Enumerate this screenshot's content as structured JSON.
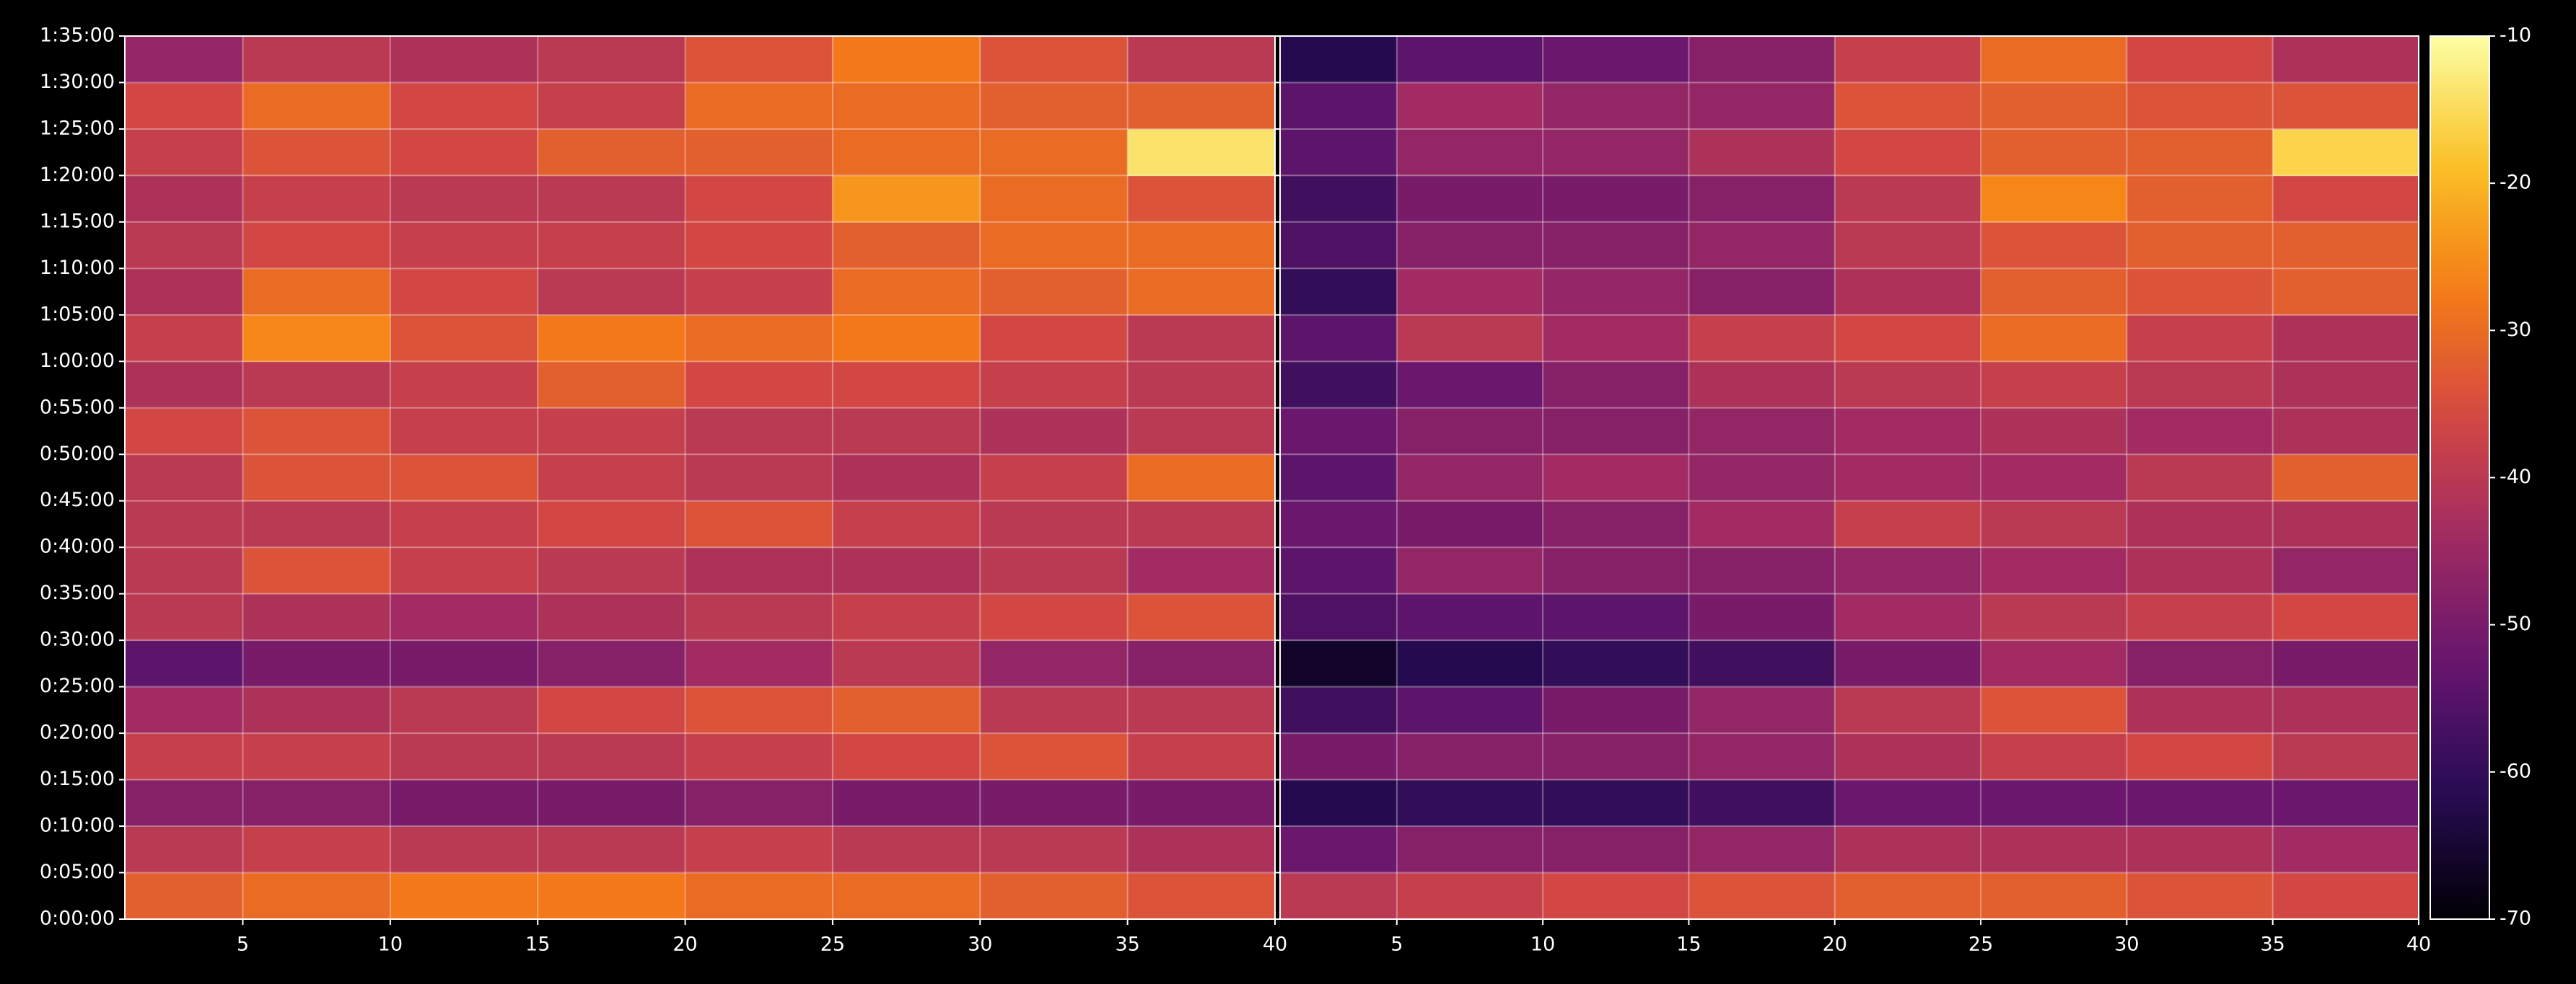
{
  "chart_data": {
    "type": "heatmap",
    "colormap": "inferno",
    "grid": true,
    "x_edges": [
      1,
      5,
      10,
      15,
      20,
      25,
      30,
      35,
      40
    ],
    "y_edges": [
      0,
      300,
      600,
      900,
      1200,
      1500,
      1800,
      2100,
      2400,
      2700,
      3000,
      3300,
      3600,
      3900,
      4200,
      4500,
      4800,
      5100,
      5400,
      5700
    ],
    "xlim": [
      1,
      40
    ],
    "xticks": [
      5,
      10,
      15,
      20,
      25,
      30,
      35,
      40
    ],
    "ylim": [
      0,
      5700
    ],
    "yticks": [
      {
        "value": 0,
        "label": "0:00:00"
      },
      {
        "value": 300,
        "label": "0:05:00"
      },
      {
        "value": 600,
        "label": "0:10:00"
      },
      {
        "value": 900,
        "label": "0:15:00"
      },
      {
        "value": 1200,
        "label": "0:20:00"
      },
      {
        "value": 1500,
        "label": "0:25:00"
      },
      {
        "value": 1800,
        "label": "0:30:00"
      },
      {
        "value": 2100,
        "label": "0:35:00"
      },
      {
        "value": 2400,
        "label": "0:40:00"
      },
      {
        "value": 2700,
        "label": "0:45:00"
      },
      {
        "value": 3000,
        "label": "0:50:00"
      },
      {
        "value": 3300,
        "label": "0:55:00"
      },
      {
        "value": 3600,
        "label": "1:00:00"
      },
      {
        "value": 3900,
        "label": "1:05:00"
      },
      {
        "value": 4200,
        "label": "1:10:00"
      },
      {
        "value": 4500,
        "label": "1:15:00"
      },
      {
        "value": 4800,
        "label": "1:20:00"
      },
      {
        "value": 5100,
        "label": "1:25:00"
      },
      {
        "value": 5400,
        "label": "1:30:00"
      },
      {
        "value": 5700,
        "label": "1:35:00"
      }
    ],
    "colorbar_lim": [
      -70,
      -10
    ],
    "colorbar_ticks": [
      -70,
      -60,
      -50,
      -40,
      -30,
      -20,
      -10
    ],
    "panels": [
      {
        "values": [
          [
            -32,
            -30,
            -28,
            -28,
            -30,
            -30,
            -32,
            -34
          ],
          [
            -40,
            -38,
            -40,
            -40,
            -38,
            -40,
            -40,
            -42
          ],
          [
            -48,
            -48,
            -50,
            -50,
            -48,
            -50,
            -50,
            -50
          ],
          [
            -38,
            -38,
            -40,
            -40,
            -38,
            -36,
            -34,
            -38
          ],
          [
            -44,
            -42,
            -40,
            -36,
            -34,
            -32,
            -40,
            -40
          ],
          [
            -54,
            -50,
            -50,
            -48,
            -44,
            -40,
            -46,
            -48
          ],
          [
            -40,
            -42,
            -44,
            -42,
            -40,
            -38,
            -36,
            -34
          ],
          [
            -40,
            -34,
            -38,
            -40,
            -42,
            -42,
            -40,
            -44
          ],
          [
            -40,
            -40,
            -38,
            -36,
            -34,
            -38,
            -40,
            -40
          ],
          [
            -40,
            -34,
            -34,
            -38,
            -40,
            -42,
            -38,
            -30
          ],
          [
            -36,
            -34,
            -38,
            -38,
            -40,
            -40,
            -42,
            -40
          ],
          [
            -42,
            -40,
            -38,
            -32,
            -36,
            -36,
            -38,
            -40
          ],
          [
            -38,
            -26,
            -34,
            -28,
            -30,
            -28,
            -36,
            -40
          ],
          [
            -42,
            -30,
            -36,
            -40,
            -38,
            -30,
            -32,
            -30
          ],
          [
            -40,
            -36,
            -38,
            -38,
            -36,
            -32,
            -30,
            -30
          ],
          [
            -42,
            -38,
            -40,
            -40,
            -36,
            -24,
            -30,
            -34
          ],
          [
            -38,
            -34,
            -36,
            -32,
            -32,
            -30,
            -30,
            -14
          ],
          [
            -36,
            -30,
            -36,
            -38,
            -30,
            -30,
            -32,
            -32
          ],
          [
            -46,
            -40,
            -42,
            -40,
            -34,
            -28,
            -34,
            -40
          ]
        ]
      },
      {
        "values": [
          [
            -40,
            -38,
            -36,
            -34,
            -32,
            -32,
            -34,
            -36
          ],
          [
            -52,
            -48,
            -48,
            -46,
            -42,
            -42,
            -42,
            -44
          ],
          [
            -62,
            -60,
            -60,
            -58,
            -52,
            -52,
            -52,
            -52
          ],
          [
            -50,
            -48,
            -48,
            -46,
            -42,
            -38,
            -36,
            -40
          ],
          [
            -58,
            -54,
            -50,
            -46,
            -40,
            -34,
            -42,
            -42
          ],
          [
            -66,
            -62,
            -60,
            -58,
            -50,
            -44,
            -48,
            -50
          ],
          [
            -56,
            -54,
            -54,
            -50,
            -44,
            -40,
            -38,
            -36
          ],
          [
            -54,
            -46,
            -48,
            -48,
            -46,
            -44,
            -42,
            -46
          ],
          [
            -52,
            -50,
            -48,
            -44,
            -38,
            -40,
            -42,
            -42
          ],
          [
            -54,
            -46,
            -44,
            -46,
            -44,
            -44,
            -40,
            -32
          ],
          [
            -52,
            -48,
            -48,
            -46,
            -44,
            -42,
            -44,
            -42
          ],
          [
            -58,
            -52,
            -48,
            -42,
            -40,
            -38,
            -40,
            -42
          ],
          [
            -54,
            -40,
            -44,
            -38,
            -36,
            -30,
            -38,
            -42
          ],
          [
            -60,
            -44,
            -46,
            -48,
            -42,
            -32,
            -34,
            -32
          ],
          [
            -56,
            -48,
            -48,
            -46,
            -40,
            -34,
            -32,
            -32
          ],
          [
            -58,
            -50,
            -50,
            -48,
            -40,
            -26,
            -32,
            -36
          ],
          [
            -54,
            -46,
            -46,
            -42,
            -36,
            -32,
            -32,
            -16
          ],
          [
            -54,
            -44,
            -46,
            -46,
            -34,
            -32,
            -34,
            -34
          ],
          [
            -62,
            -54,
            -52,
            -48,
            -38,
            -30,
            -36,
            -42
          ]
        ]
      }
    ]
  }
}
